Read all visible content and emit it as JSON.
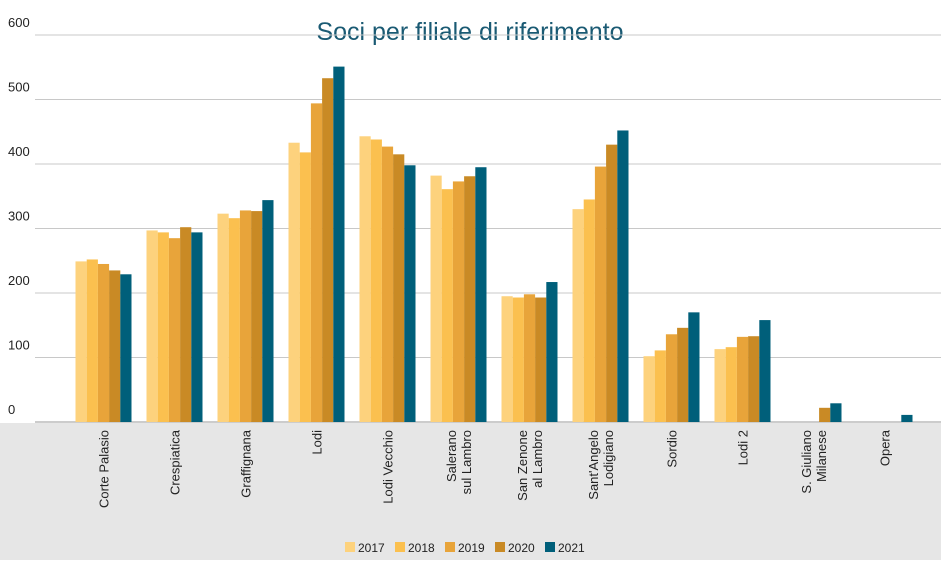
{
  "chart_data": {
    "type": "bar",
    "title": "Soci per filiale di riferimento",
    "categories": [
      "Corte Palasio",
      "Crespiatica",
      "Graffignana",
      "Lodi",
      "Lodi Vecchio",
      "Salerano\nsul Lambro",
      "San Zenone\nal Lambro",
      "Sant'Angelo\nLodigiano",
      "Sordio",
      "Lodi 2",
      "S. Giuliano\nMilanese",
      "Opera"
    ],
    "series": [
      {
        "name": "2017",
        "color": "#fdd27d",
        "values": [
          249,
          297,
          323,
          433,
          443,
          382,
          195,
          330,
          102,
          113,
          null,
          null
        ]
      },
      {
        "name": "2018",
        "color": "#fbc04f",
        "values": [
          252,
          294,
          316,
          418,
          438,
          361,
          193,
          345,
          111,
          116,
          null,
          null
        ]
      },
      {
        "name": "2019",
        "color": "#e8a43a",
        "values": [
          245,
          285,
          328,
          494,
          427,
          373,
          198,
          396,
          136,
          132,
          null,
          null
        ]
      },
      {
        "name": "2020",
        "color": "#c98a25",
        "values": [
          235,
          302,
          327,
          533,
          415,
          381,
          193,
          430,
          146,
          133,
          22,
          null
        ]
      },
      {
        "name": "2021",
        "color": "#005f7a",
        "values": [
          229,
          294,
          344,
          551,
          398,
          395,
          217,
          452,
          170,
          158,
          29,
          11
        ]
      }
    ],
    "ylim": [
      0,
      600
    ],
    "yticks": [
      0,
      100,
      200,
      300,
      400,
      500,
      600
    ],
    "grid": true,
    "legend": "bottom"
  }
}
